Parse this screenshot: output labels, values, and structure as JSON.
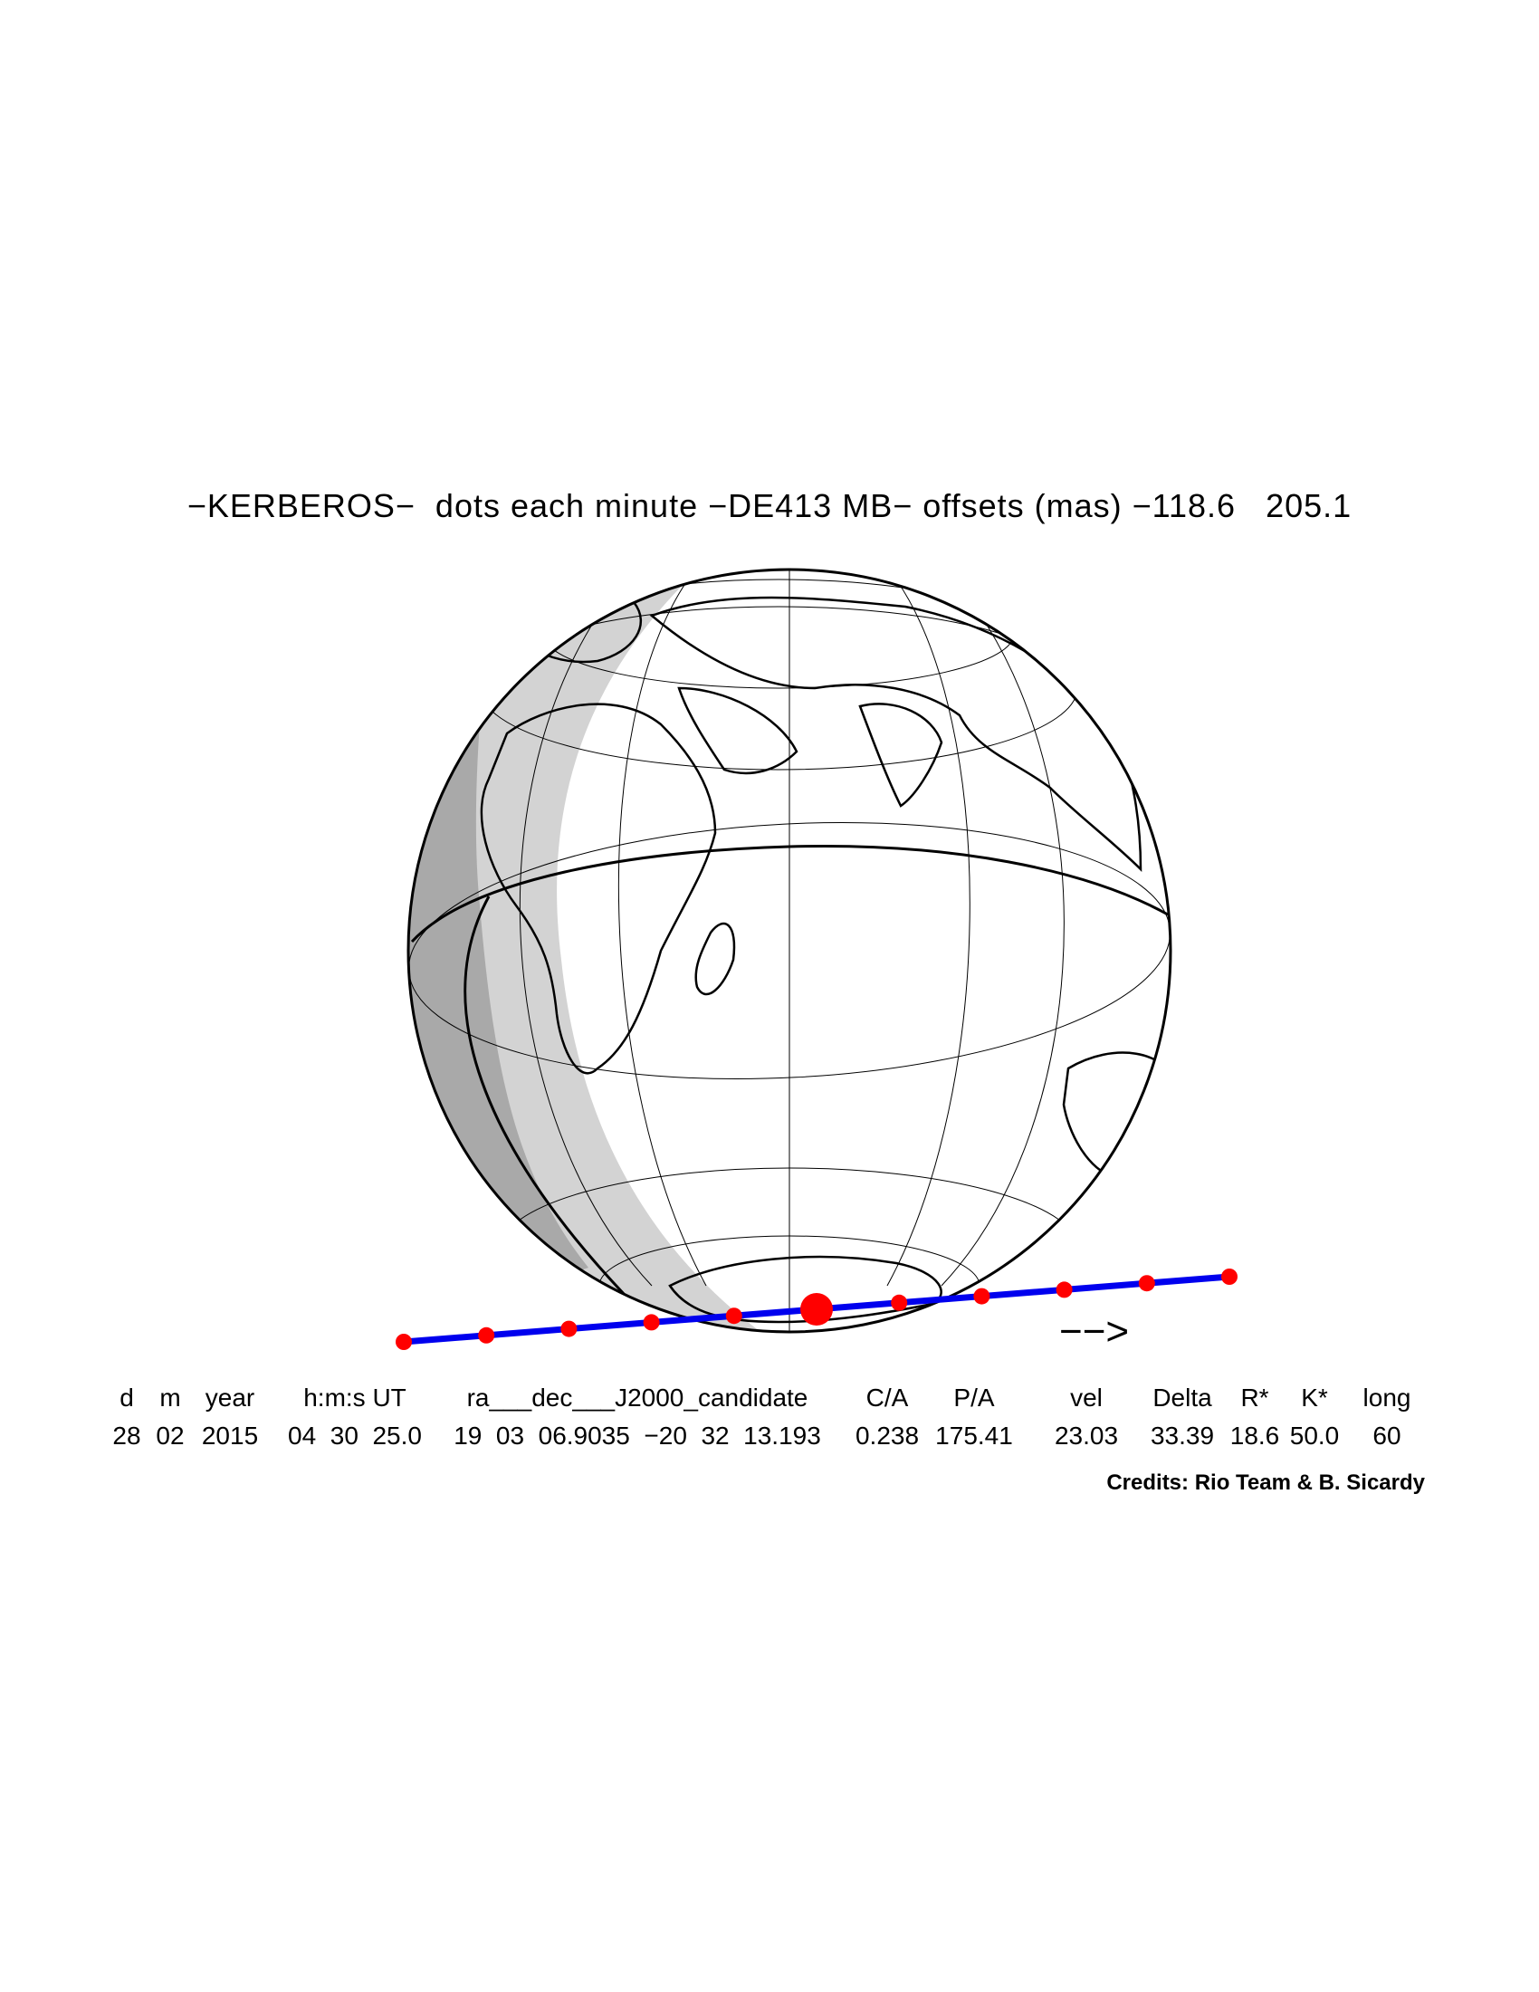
{
  "title": "−KERBEROS−  dots each minute −DE413 MB− offsets (mas) −118.6   205.1",
  "table": {
    "headers": [
      "d",
      "m",
      "year",
      "h:m:s UT",
      "ra___dec___J2000_candidate",
      "C/A",
      "P/A",
      "vel",
      "Delta",
      "R*",
      "K*",
      "long"
    ],
    "values": [
      "28",
      "02",
      "2015",
      "04  30  25.0",
      "19  03  06.9035  −20  32  13.193",
      "0.238",
      "175.41",
      "23.03",
      "33.39",
      "18.6",
      "50.0",
      "60"
    ]
  },
  "credits": "Credits: Rio Team & B. Sicardy",
  "arrow": "−−>",
  "colors": {
    "track": "#0000ee",
    "dots": "#ff0000",
    "night": "#a9a9a9",
    "twilight": "#d3d3d3",
    "land_outline": "#000000"
  }
}
